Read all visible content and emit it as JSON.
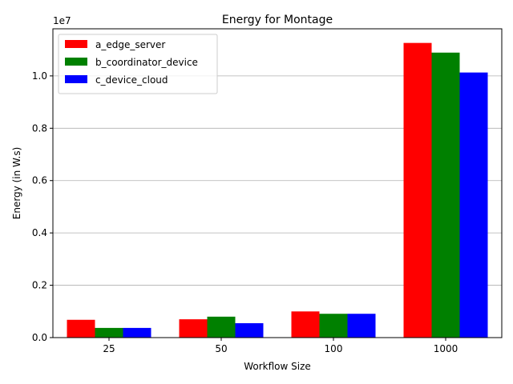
{
  "chart_data": {
    "type": "bar",
    "title": "Energy for Montage",
    "xlabel": "Workflow Size",
    "ylabel": "Energy (in W.s)",
    "y_offset_label": "1e7",
    "categories": [
      "25",
      "50",
      "100",
      "1000"
    ],
    "ylim": [
      0,
      1.18
    ],
    "yticks": [
      0.0,
      0.2,
      0.4,
      0.6,
      0.8,
      1.0
    ],
    "ytick_labels": [
      "0.0",
      "0.2",
      "0.4",
      "0.6",
      "0.8",
      "1.0"
    ],
    "grid": "y",
    "legend_position": "top-left",
    "series": [
      {
        "name": "a_edge_server",
        "color": "#ff0000",
        "values": [
          0.068,
          0.07,
          0.1,
          1.126
        ]
      },
      {
        "name": "b_coordinator_device",
        "color": "#008000",
        "values": [
          0.037,
          0.08,
          0.091,
          1.089
        ]
      },
      {
        "name": "c_device_cloud",
        "color": "#0000ff",
        "values": [
          0.037,
          0.055,
          0.091,
          1.013
        ]
      }
    ]
  }
}
